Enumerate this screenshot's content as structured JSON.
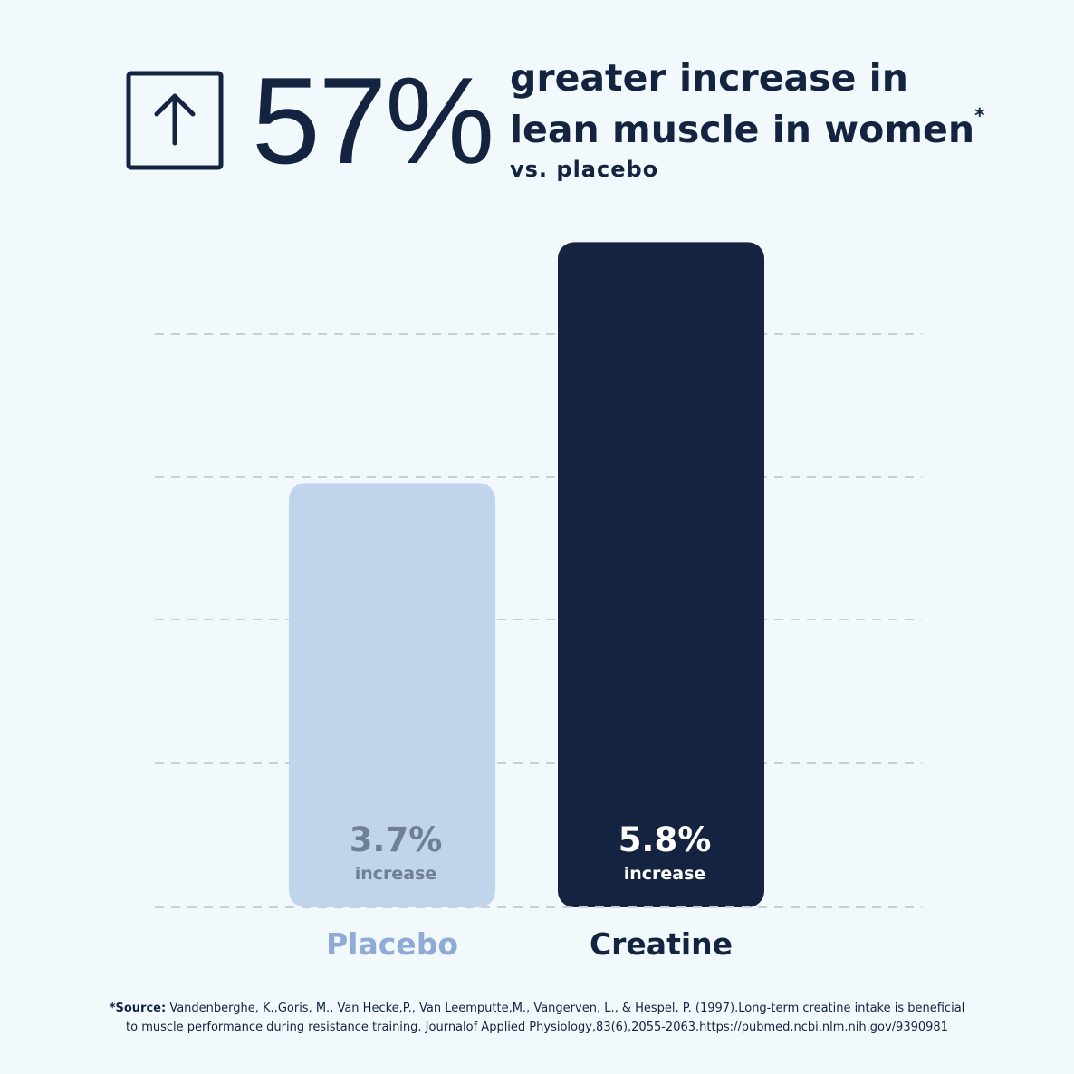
{
  "chart_data": {
    "type": "bar",
    "stat": "57%",
    "headline": [
      "greater increase in",
      "lean muscle in women"
    ],
    "headline_mark": "*",
    "subheadline": "vs. placebo",
    "categories": [
      "Placebo",
      "Creatine"
    ],
    "values": [
      3.7,
      5.8
    ],
    "value_labels": [
      "3.7%",
      "5.8%"
    ],
    "value_caption": "increase",
    "colors": [
      "#c0d4eb",
      "#14233f"
    ],
    "ylim": [
      0,
      6
    ],
    "grid": true,
    "source_label": "*Source:",
    "source_text": "Vandenberghe, K.,Goris, M., Van Hecke,P., Van Leemputte,M., Vangerven, L., & Hespel, P. (1997).Long-term creatine intake is beneficial to muscle performance during resistance training. Journalof Applied Physiology,83(6),2055-2063.https://pubmed.ncbi.nlm.nih.gov/9390981"
  }
}
